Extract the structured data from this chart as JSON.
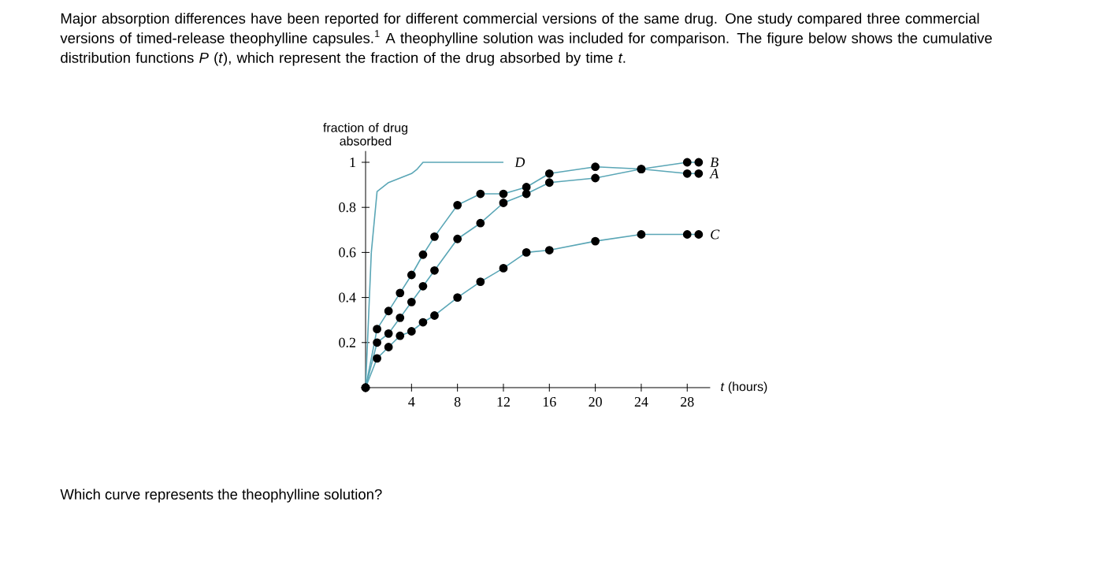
{
  "chart_data": {
    "type": "line",
    "title": "Major absorption differences have been reported for different commercial versions of the same drug. One study compared three commercial versions of timed-release theophylline capsules.$^{1}$ A theophylline solution was included for comparison. The figure below shows the cumulative distribution functions *P* (*t*), which represent the fraction of the drug absorbed by time *t*.",
    "xlabel": "*t* (hours)",
    "ylabel": "fraction of drug absorbed",
    "annotations": [
      "Which curve represents the theophylline solution?"
    ],
    "xlim": [
      0,
      30
    ],
    "ylim": [
      0,
      1.05
    ],
    "xticks": [
      4,
      8,
      12,
      16,
      20,
      24,
      28
    ],
    "yticks": [
      0.2,
      0.4,
      0.6,
      0.8,
      1
    ],
    "marker": "circle",
    "series": [
      {
        "name": "A",
        "color": "#5aa6b6",
        "x": [
          0,
          1,
          2,
          3,
          4,
          5,
          6,
          8,
          10,
          12,
          14,
          16,
          20,
          24,
          28,
          29
        ],
        "values": [
          0,
          0.26,
          0.34,
          0.42,
          0.5,
          0.59,
          0.67,
          0.81,
          0.86,
          0.86,
          0.89,
          0.95,
          0.98,
          0.97,
          0.95,
          0.95
        ]
      },
      {
        "name": "B",
        "color": "#5aa6b6",
        "x": [
          0,
          1,
          2,
          3,
          4,
          5,
          6,
          8,
          10,
          12,
          14,
          16,
          20,
          24,
          28,
          29
        ],
        "values": [
          0,
          0.2,
          0.24,
          0.31,
          0.38,
          0.45,
          0.52,
          0.66,
          0.73,
          0.82,
          0.86,
          0.91,
          0.93,
          0.97,
          1.0,
          1.0
        ]
      },
      {
        "name": "C",
        "color": "#5aa6b6",
        "x": [
          0,
          1,
          2,
          3,
          4,
          5,
          6,
          8,
          10,
          12,
          14,
          16,
          20,
          24,
          28,
          29
        ],
        "values": [
          0,
          0.13,
          0.18,
          0.23,
          0.25,
          0.29,
          0.32,
          0.4,
          0.47,
          0.53,
          0.6,
          0.61,
          0.65,
          0.68,
          0.68,
          0.68
        ]
      },
      {
        "name": "D",
        "color": "#5aa6b6",
        "marker": "none",
        "x": [
          0,
          0.5,
          1,
          1.5,
          2,
          3,
          4,
          4.5,
          5,
          12
        ],
        "values": [
          0,
          0.6,
          0.87,
          0.89,
          0.91,
          0.93,
          0.95,
          0.97,
          1.0,
          1.0
        ]
      }
    ]
  }
}
